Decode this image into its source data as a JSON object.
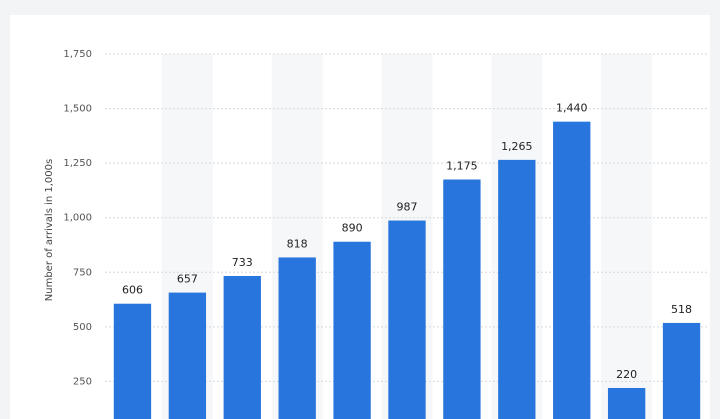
{
  "chart_data": {
    "type": "bar",
    "y_label": "Number of arrivals in 1,000s",
    "values": [
      606,
      657,
      733,
      818,
      890,
      987,
      1175,
      1265,
      1440,
      220,
      518
    ],
    "value_labels": [
      "606",
      "657",
      "733",
      "818",
      "890",
      "987",
      "1,175",
      "1,265",
      "1,440",
      "220",
      "518"
    ],
    "color": "#2876dd",
    "ylim": [
      0,
      1750
    ],
    "yticks": [
      250,
      500,
      750,
      {
        "value": 1000,
        "label": "1,000"
      },
      {
        "value": 1250,
        "label": "1,250"
      },
      {
        "value": 1500,
        "label": "1,500"
      },
      {
        "value": 1750,
        "label": "1,750"
      }
    ],
    "grid": true
  }
}
